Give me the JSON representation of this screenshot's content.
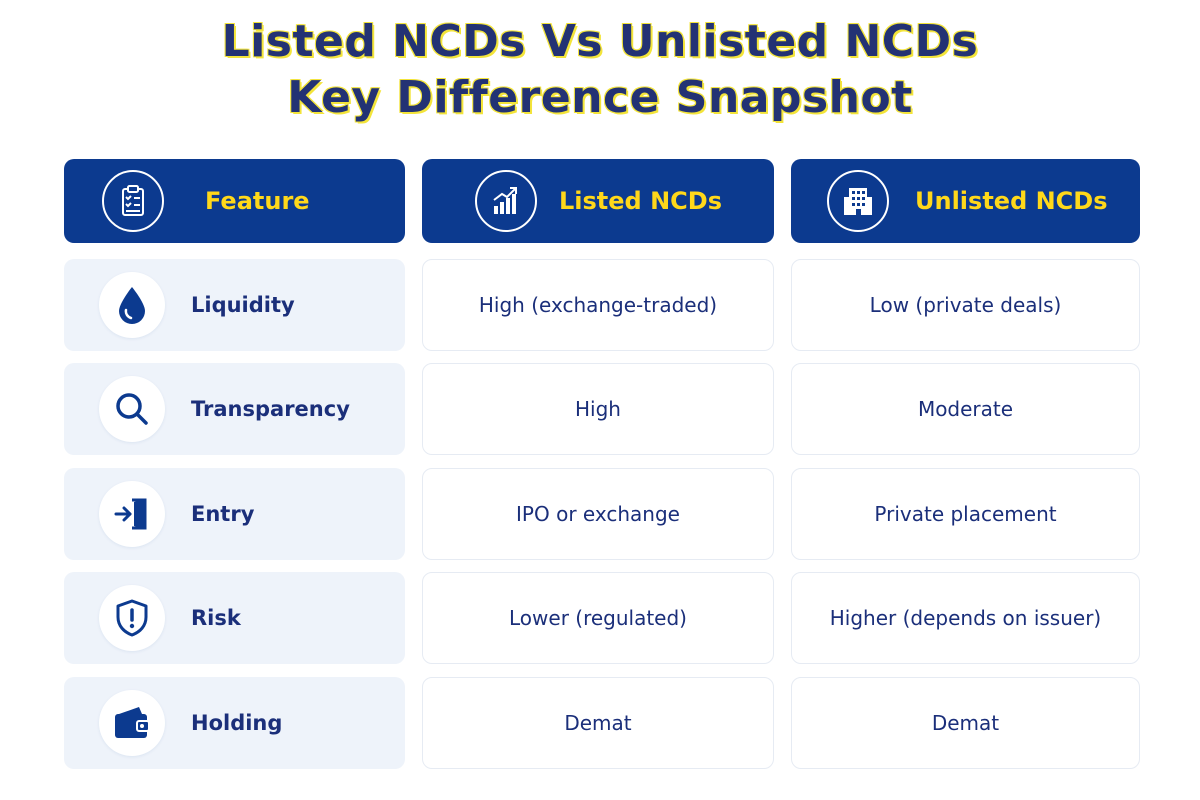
{
  "title": {
    "line1": "Listed NCDs Vs Unlisted NCDs",
    "line2": "Key Difference Snapshot"
  },
  "colors": {
    "header_bg": "#0c3a8f",
    "header_text": "#ffd81a",
    "title_text": "#233274",
    "title_outline": "#f3e43a",
    "feature_bg": "#eef3fa",
    "body_text": "#1b2f7a"
  },
  "headers": [
    {
      "label": "Feature",
      "icon": "clipboard-checklist-icon"
    },
    {
      "label": "Listed NCDs",
      "icon": "growth-chart-icon"
    },
    {
      "label": "Unlisted NCDs",
      "icon": "building-icon"
    }
  ],
  "rows": [
    {
      "feature": "Liquidity",
      "icon": "water-drop-icon",
      "listed": "High (exchange-traded)",
      "unlisted": "Low (private deals)"
    },
    {
      "feature": "Transparency",
      "icon": "magnifier-icon",
      "listed": "High",
      "unlisted": "Moderate"
    },
    {
      "feature": "Entry",
      "icon": "entry-door-icon",
      "listed": "IPO or exchange",
      "unlisted": "Private placement"
    },
    {
      "feature": "Risk",
      "icon": "shield-alert-icon",
      "listed": "Lower (regulated)",
      "unlisted": "Higher (depends on issuer)"
    },
    {
      "feature": "Holding",
      "icon": "wallet-icon",
      "listed": "Demat",
      "unlisted": "Demat"
    }
  ]
}
